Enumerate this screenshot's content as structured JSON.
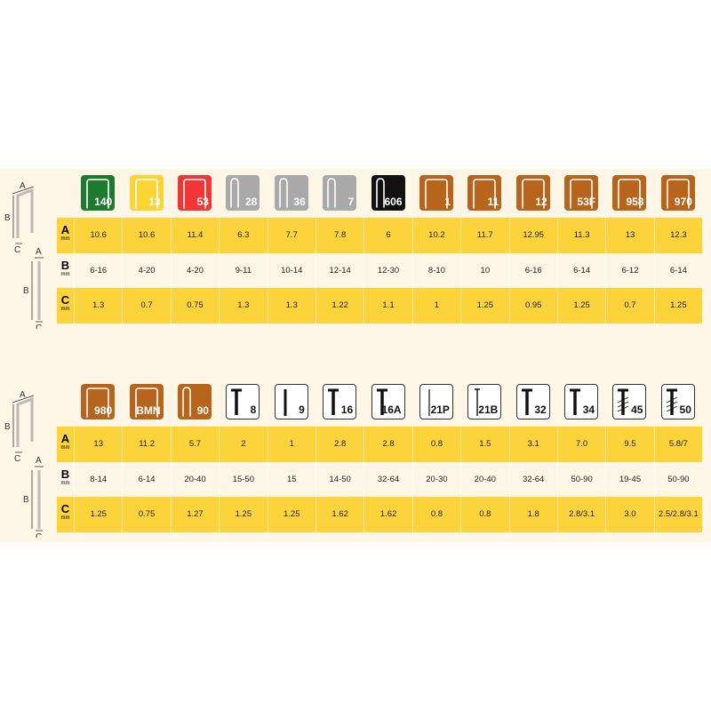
{
  "row_labels": [
    {
      "letter": "A",
      "unit": "mm"
    },
    {
      "letter": "B",
      "unit": "mm"
    },
    {
      "letter": "C",
      "unit": "mm"
    }
  ],
  "diagram_labels": {
    "a": "A",
    "b": "B",
    "c": "C"
  },
  "colors": {
    "green": "#1e7b2e",
    "yellow": "#fcd535",
    "red": "#f03636",
    "gray": "#a9a9a9",
    "black": "#111111",
    "brown": "#b7651d",
    "row_highlight": "#fdd33b",
    "panel": "#fdf6e6"
  },
  "tables": [
    {
      "columns": [
        {
          "code": "140",
          "shape": "staple",
          "color": "green",
          "A": "10.6",
          "B": "6-16",
          "C": "1.3"
        },
        {
          "code": "13",
          "shape": "staple",
          "color": "yellow",
          "A": "10.6",
          "B": "4-20",
          "C": "0.7"
        },
        {
          "code": "53",
          "shape": "staple",
          "color": "red",
          "A": "11.4",
          "B": "4-20",
          "C": "0.75"
        },
        {
          "code": "28",
          "shape": "narrow-staple",
          "color": "gray",
          "A": "6.3",
          "B": "9-11",
          "C": "1.3"
        },
        {
          "code": "36",
          "shape": "narrow-staple",
          "color": "gray",
          "A": "7.7",
          "B": "10-14",
          "C": "1.3"
        },
        {
          "code": "7",
          "shape": "narrow-staple",
          "color": "gray",
          "A": "7.8",
          "B": "12-14",
          "C": "1.22"
        },
        {
          "code": "606",
          "shape": "narrow-staple",
          "color": "black",
          "A": "6",
          "B": "12-30",
          "C": "1.1"
        },
        {
          "code": "1",
          "shape": "staple",
          "color": "brown",
          "A": "10.2",
          "B": "8-10",
          "C": "1"
        },
        {
          "code": "11",
          "shape": "staple",
          "color": "brown",
          "A": "11.7",
          "B": "10",
          "C": "1.25"
        },
        {
          "code": "12",
          "shape": "staple",
          "color": "brown",
          "A": "12.95",
          "B": "6-16",
          "C": "0.95"
        },
        {
          "code": "53F",
          "shape": "staple",
          "color": "brown",
          "A": "11.3",
          "B": "6-14",
          "C": "1.25"
        },
        {
          "code": "958",
          "shape": "staple",
          "color": "brown",
          "A": "13",
          "B": "6-12",
          "C": "0.7"
        },
        {
          "code": "970",
          "shape": "staple",
          "color": "brown",
          "A": "12.3",
          "B": "6-14",
          "C": "1.25"
        }
      ]
    },
    {
      "columns": [
        {
          "code": "980",
          "shape": "staple",
          "color": "brown",
          "A": "13",
          "B": "8-14",
          "C": "1.25"
        },
        {
          "code": "BMN",
          "shape": "staple",
          "color": "brown",
          "A": "11.2",
          "B": "6-14",
          "C": "0.75"
        },
        {
          "code": "90",
          "shape": "narrow-staple",
          "color": "brown",
          "A": "5.7",
          "B": "20-40",
          "C": "1.27"
        },
        {
          "code": "8",
          "shape": "nail",
          "color": "white",
          "A": "2",
          "B": "15-50",
          "C": "1.25"
        },
        {
          "code": "9",
          "shape": "pin",
          "color": "white",
          "A": "1",
          "B": "15",
          "C": "1.25"
        },
        {
          "code": "16",
          "shape": "nail",
          "color": "white",
          "A": "2.8",
          "B": "14-50",
          "C": "1.62"
        },
        {
          "code": "16A",
          "shape": "nail",
          "color": "white",
          "A": "2.8",
          "B": "32-64",
          "C": "1.62"
        },
        {
          "code": "21P",
          "shape": "thin-pin",
          "color": "white",
          "A": "0.8",
          "B": "20-30",
          "C": "0.8"
        },
        {
          "code": "21B",
          "shape": "brad",
          "color": "white",
          "A": "1.5",
          "B": "20-40",
          "C": "0.8"
        },
        {
          "code": "32",
          "shape": "nail",
          "color": "white",
          "A": "3.1",
          "B": "32-64",
          "C": "1.8"
        },
        {
          "code": "34",
          "shape": "nail",
          "color": "white",
          "A": "7.0",
          "B": "50-90",
          "C": "2.8/3.1"
        },
        {
          "code": "45",
          "shape": "ring-nail",
          "color": "white",
          "A": "9.5",
          "B": "19-45",
          "C": "3.0"
        },
        {
          "code": "50",
          "shape": "ring-nail",
          "color": "white",
          "A": "5.8/7",
          "B": "50-90",
          "C": "2.5/2.8/3.1"
        }
      ]
    }
  ]
}
